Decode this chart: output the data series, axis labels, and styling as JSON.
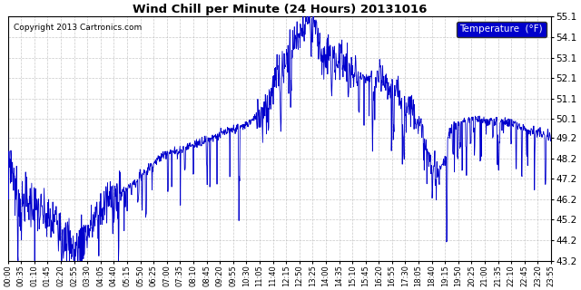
{
  "title": "Wind Chill per Minute (24 Hours) 20131016",
  "copyright": "Copyright 2013 Cartronics.com",
  "legend_label": "Temperature  (°F)",
  "line_color": "#0000CC",
  "background_color": "#ffffff",
  "grid_color": "#bbbbbb",
  "ylim": [
    43.2,
    55.1
  ],
  "yticks": [
    43.2,
    44.2,
    45.2,
    46.2,
    47.2,
    48.2,
    49.2,
    50.1,
    51.1,
    52.1,
    53.1,
    54.1,
    55.1
  ],
  "xtick_labels": [
    "00:00",
    "00:35",
    "01:10",
    "01:45",
    "02:20",
    "02:55",
    "03:30",
    "04:05",
    "04:40",
    "05:15",
    "05:50",
    "06:25",
    "07:00",
    "07:35",
    "08:10",
    "08:45",
    "09:20",
    "09:55",
    "10:30",
    "11:05",
    "11:40",
    "12:15",
    "12:50",
    "13:25",
    "14:00",
    "14:35",
    "15:10",
    "15:45",
    "16:20",
    "16:55",
    "17:30",
    "18:05",
    "18:40",
    "19:15",
    "19:50",
    "20:25",
    "21:00",
    "21:35",
    "22:10",
    "22:45",
    "23:20",
    "23:55"
  ]
}
